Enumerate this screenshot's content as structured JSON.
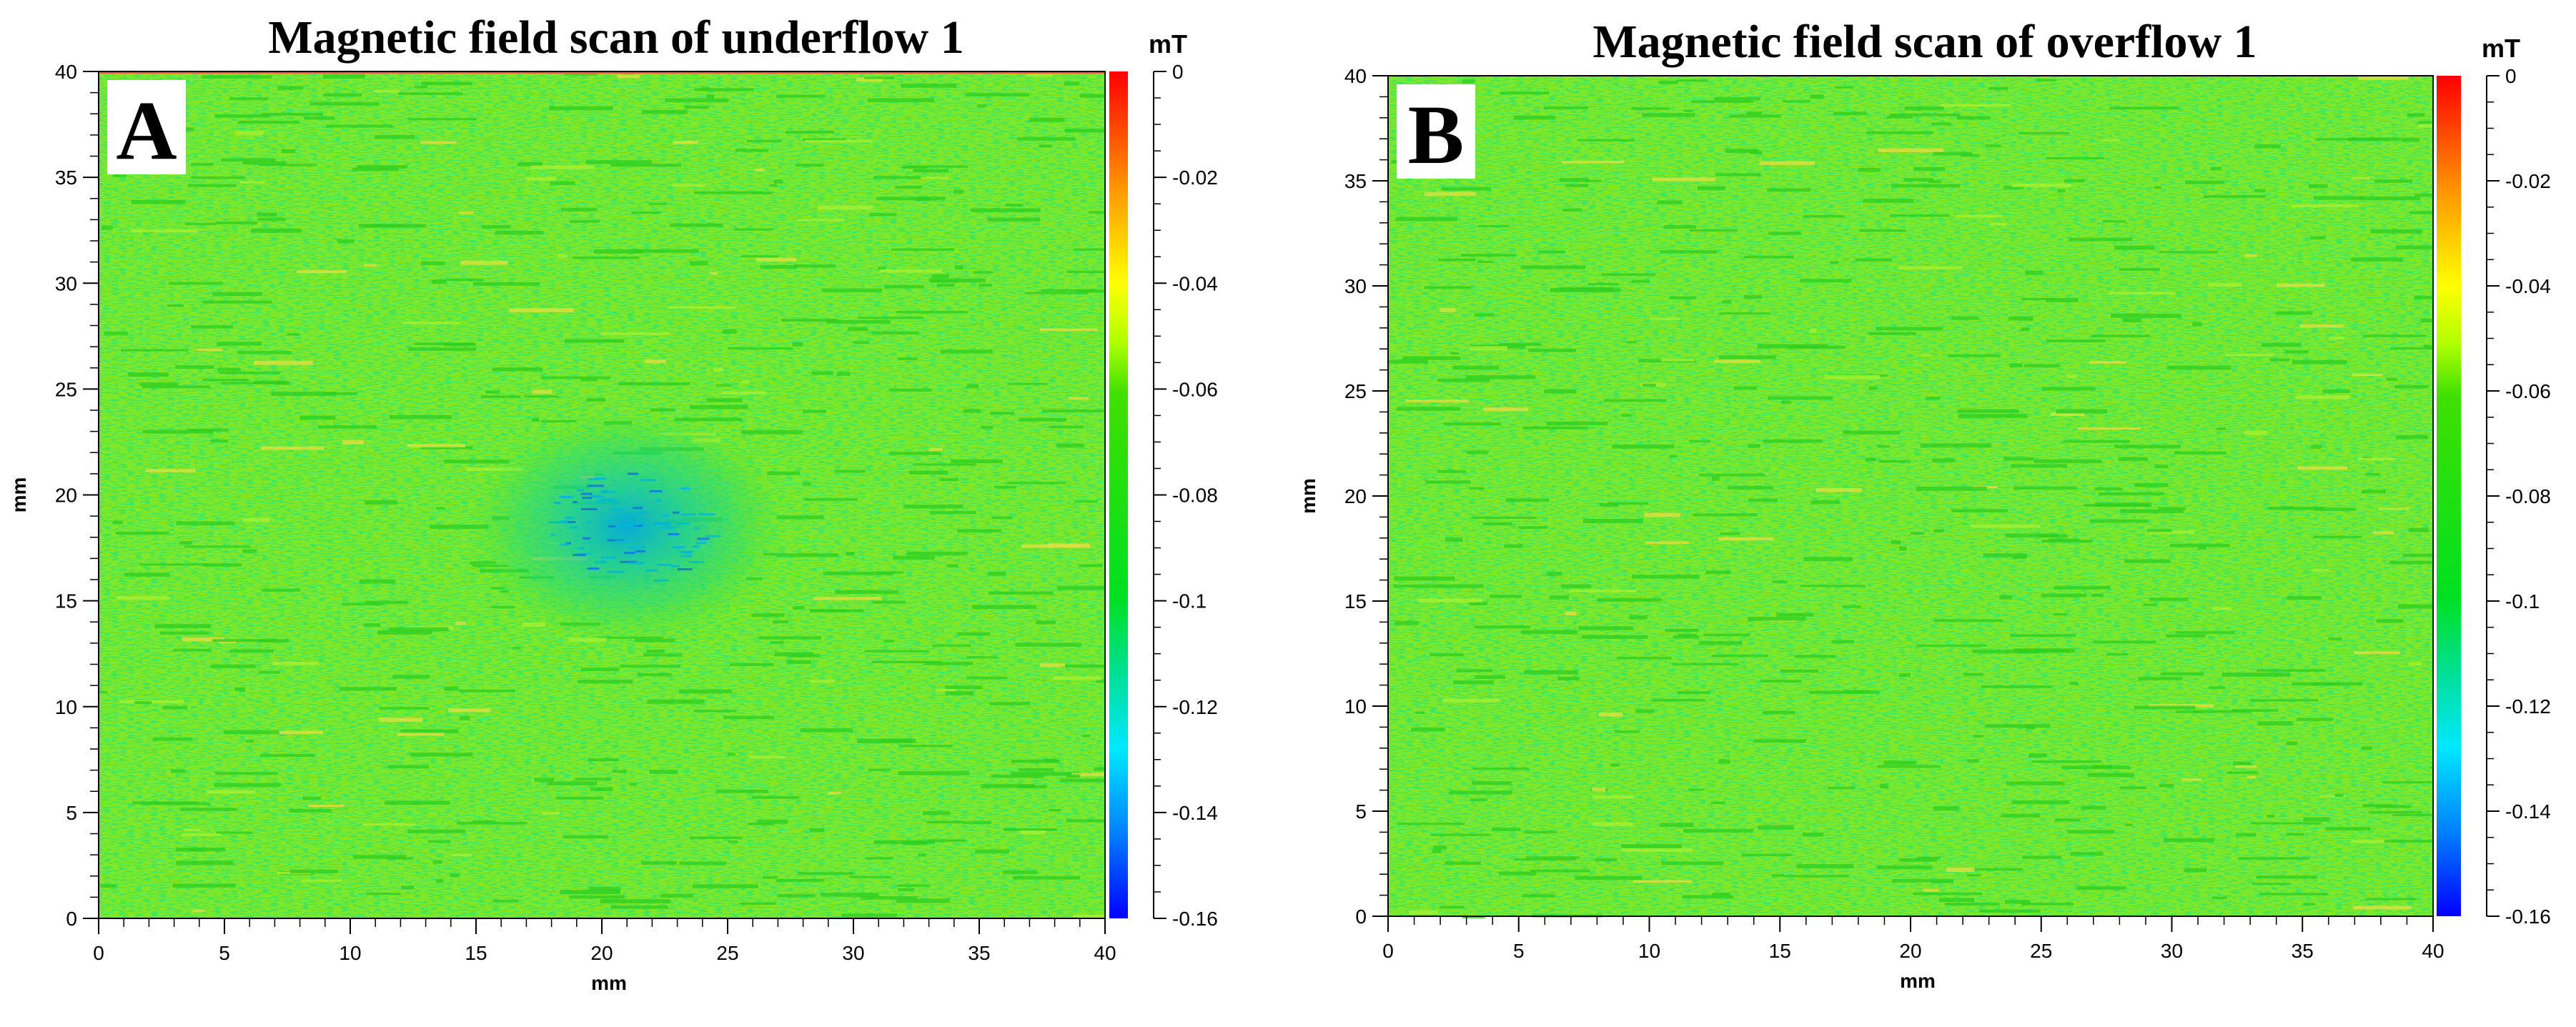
{
  "chart_data": [
    {
      "type": "heatmap",
      "panel_label": "A",
      "title": "Magnetic field scan of underflow 1",
      "xlabel": "mm",
      "ylabel": "mm",
      "xlim": [
        0,
        40
      ],
      "ylim": [
        0,
        40
      ],
      "x_ticks": [
        0,
        5,
        10,
        15,
        20,
        25,
        30,
        35,
        40
      ],
      "y_ticks": [
        0,
        5,
        10,
        15,
        20,
        25,
        30,
        35,
        40
      ],
      "background_value": -0.055,
      "features": [
        {
          "shape": "ellipse",
          "center": [
            21,
            18.5
          ],
          "radius": [
            5.5,
            5.5
          ],
          "min_value": -0.13
        }
      ],
      "colorbar": {
        "unit": "mT",
        "min": -0.16,
        "max": 0,
        "ticks": [
          "0",
          "-0.02",
          "-0.04",
          "-0.06",
          "-0.08",
          "-0.1",
          "-0.12",
          "-0.14",
          "-0.16"
        ],
        "colors": [
          "#ff0000",
          "#ff8000",
          "#ffff00",
          "#7fff00",
          "#00e000",
          "#00e0a0",
          "#00e0ff",
          "#0080ff",
          "#0000ff"
        ]
      }
    },
    {
      "type": "heatmap",
      "panel_label": "B",
      "title": "Magnetic field scan of overflow 1",
      "xlabel": "mm",
      "ylabel": "mm",
      "xlim": [
        0,
        40
      ],
      "ylim": [
        0,
        40
      ],
      "x_ticks": [
        0,
        5,
        10,
        15,
        20,
        25,
        30,
        35,
        40
      ],
      "y_ticks": [
        0,
        5,
        10,
        15,
        20,
        25,
        30,
        35,
        40
      ],
      "background_value": -0.055,
      "features": [],
      "colorbar": {
        "unit": "mT",
        "min": -0.16,
        "max": 0,
        "ticks": [
          "0",
          "-0.02",
          "-0.04",
          "-0.06",
          "-0.08",
          "-0.1",
          "-0.12",
          "-0.14",
          "-0.16"
        ],
        "colors": [
          "#ff0000",
          "#ff8000",
          "#ffff00",
          "#7fff00",
          "#00e000",
          "#00e0a0",
          "#00e0ff",
          "#0080ff",
          "#0000ff"
        ]
      }
    }
  ]
}
